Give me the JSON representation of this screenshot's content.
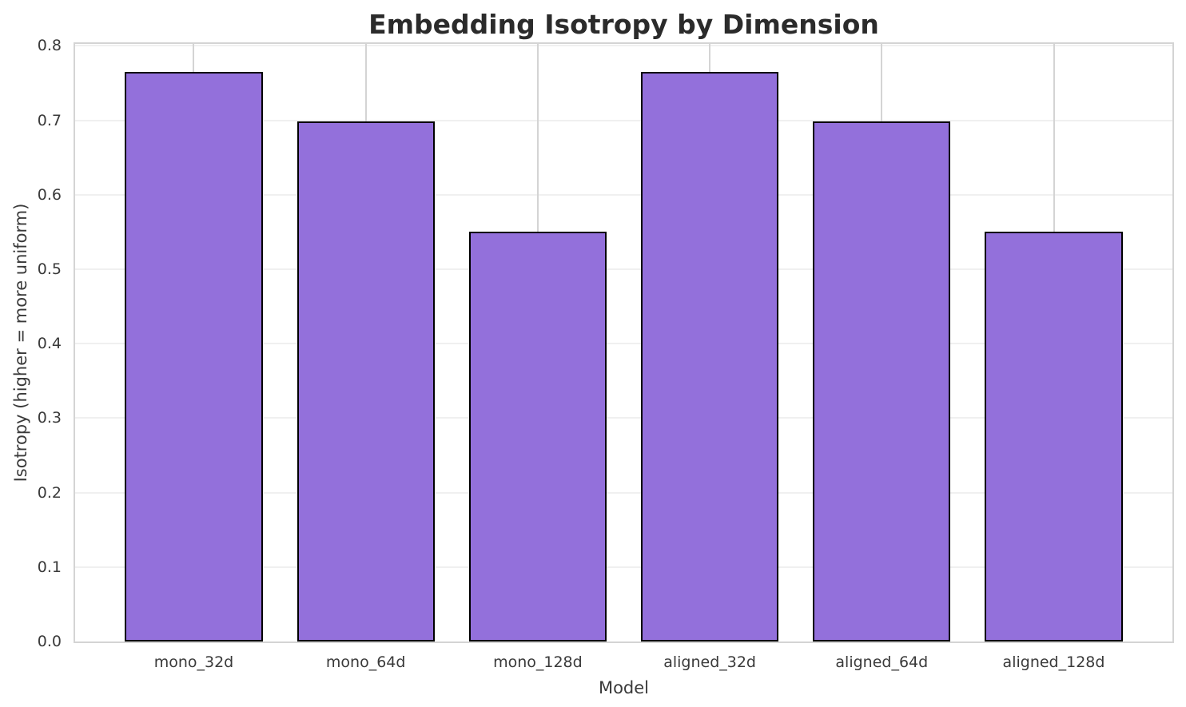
{
  "chart_data": {
    "type": "bar",
    "title": "Embedding Isotropy by Dimension",
    "xlabel": "Model",
    "ylabel": "Isotropy (higher = more uniform)",
    "categories": [
      "mono_32d",
      "mono_64d",
      "mono_128d",
      "aligned_32d",
      "aligned_64d",
      "aligned_128d"
    ],
    "values": [
      0.765,
      0.698,
      0.55,
      0.765,
      0.698,
      0.55
    ],
    "ylim": [
      0.0,
      0.8
    ],
    "y_ticks": [
      "0.0",
      "0.1",
      "0.2",
      "0.3",
      "0.4",
      "0.5",
      "0.6",
      "0.7",
      "0.8"
    ],
    "y_tick_values": [
      0.0,
      0.1,
      0.2,
      0.3,
      0.4,
      0.5,
      0.6,
      0.7,
      0.8
    ],
    "grid": "both",
    "legend_position": "none",
    "bar_color": "#9370DB",
    "bar_edge_color": "#000000",
    "grid_color_horizontal": "#f0f0f0",
    "grid_color_vertical": "#d4d4d4",
    "spine_color": "#d4d4d4",
    "title_color": "#2b2b2b",
    "text_color": "#3a3a3a",
    "bar_width_fraction": 0.8,
    "xlim": [
      -0.69,
      5.69
    ]
  }
}
